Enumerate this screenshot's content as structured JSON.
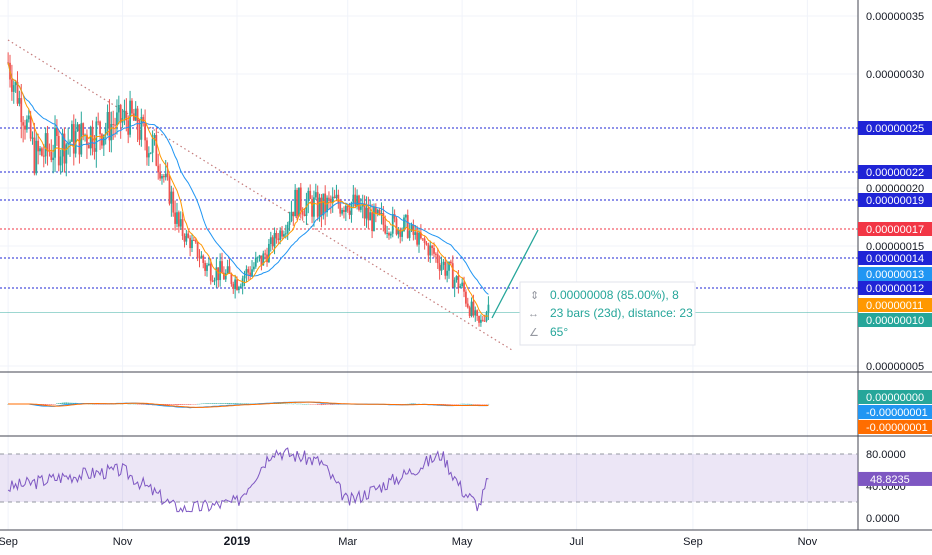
{
  "price_panel": {
    "y_ticks": [
      {
        "value": 3.5e-07,
        "label": "0.00000035"
      },
      {
        "value": 3e-07,
        "label": "0.00000030"
      },
      {
        "value": 2e-07,
        "label": "0.00000020"
      },
      {
        "value": 1.5e-07,
        "label": "0.00000015"
      },
      {
        "value": 5e-08,
        "label": "0.00000005"
      }
    ],
    "level_lines": [
      {
        "value": 2.5e-07,
        "label": "0.00000025",
        "color": "#1f24d6",
        "style": "dotted",
        "badge_color": "#1f24d6"
      },
      {
        "value": 2.2e-07,
        "label": "0.00000022",
        "color": "#1f24d6",
        "style": "dotted",
        "badge_color": "#1f24d6"
      },
      {
        "value": 1.9e-07,
        "label": "0.00000019",
        "color": "#1f24d6",
        "style": "dotted",
        "badge_color": "#1f24d6"
      },
      {
        "value": 1.7e-07,
        "label": "0.00000017",
        "color": "#f23645",
        "style": "dotted",
        "badge_color": "#f23645"
      },
      {
        "value": 1.4e-07,
        "label": "0.00000014",
        "color": "#1f24d6",
        "style": "dotted",
        "badge_color": "#1f24d6"
      },
      {
        "value": 1.2e-07,
        "label": "0.00000012",
        "color": "#1f24d6",
        "style": "dotted",
        "badge_color": "#1f24d6"
      },
      {
        "value": 1.05e-07,
        "label": "",
        "color": "#26a69a",
        "style": "solid",
        "badge_color": ""
      }
    ],
    "badges": [
      {
        "value": 1.3e-07,
        "label": "0.00000013",
        "color": "#2196f3"
      },
      {
        "value": 1.1e-07,
        "label": "0.00000011",
        "color": "#ff9800"
      },
      {
        "value": 1e-07,
        "label": "0.00000010",
        "color": "#26a69a"
      }
    ],
    "measure_box": {
      "line1": "0.00000008 (85.00%), 8",
      "line2": "23 bars (23d), distance: 23",
      "line3": "65°"
    }
  },
  "macd_panel": {
    "badges": [
      {
        "label": "0.00000000",
        "color": "#26a69a"
      },
      {
        "label": "-0.00000001",
        "color": "#2196f3"
      },
      {
        "label": "-0.00000001",
        "color": "#ff6d00"
      }
    ]
  },
  "rsi_panel": {
    "y_ticks": [
      {
        "value": 80,
        "label": "80.0000"
      },
      {
        "value": 40,
        "label": "40.0000"
      },
      {
        "value": 0,
        "label": "0.0000"
      }
    ],
    "badge": {
      "value": 48.8235,
      "label": "48.8235",
      "color": "#7e57c2"
    },
    "band": [
      20,
      80
    ]
  },
  "x_axis": {
    "labels": [
      "Sep",
      "Nov",
      "2019",
      "Mar",
      "May",
      "Jul",
      "Sep",
      "Nov"
    ],
    "bold": [
      false,
      false,
      true,
      false,
      false,
      false,
      false,
      false
    ]
  },
  "chart_data": [
    {
      "type": "candlestick",
      "panel": "price",
      "series": [
        {
          "name": "",
          "color": "#2196f3",
          "description_values": "slow moving average"
        },
        {
          "name": "",
          "color": "#ff9800",
          "description_values": "fast moving average"
        }
      ],
      "approx_close_path": [
        {
          "date": "2018-09-01",
          "close": 3.1e-07
        },
        {
          "date": "2018-09-15",
          "close": 2.3e-07
        },
        {
          "date": "2018-10-01",
          "close": 2.4e-07
        },
        {
          "date": "2018-10-20",
          "close": 2.5e-07
        },
        {
          "date": "2018-11-05",
          "close": 2.6e-07
        },
        {
          "date": "2018-11-20",
          "close": 2.3e-07
        },
        {
          "date": "2018-12-01",
          "close": 1.7e-07
        },
        {
          "date": "2018-12-15",
          "close": 1.35e-07
        },
        {
          "date": "2019-01-01",
          "close": 1.25e-07
        },
        {
          "date": "2019-01-15",
          "close": 1.4e-07
        },
        {
          "date": "2019-02-01",
          "close": 1.9e-07
        },
        {
          "date": "2019-02-15",
          "close": 1.85e-07
        },
        {
          "date": "2019-03-01",
          "close": 1.9e-07
        },
        {
          "date": "2019-03-15",
          "close": 1.75e-07
        },
        {
          "date": "2019-04-01",
          "close": 1.7e-07
        },
        {
          "date": "2019-04-15",
          "close": 1.45e-07
        },
        {
          "date": "2019-05-01",
          "close": 1.2e-07
        },
        {
          "date": "2019-05-10",
          "close": 9.5e-08
        },
        {
          "date": "2019-05-15",
          "close": 1.1e-07
        }
      ],
      "ylim": [
        3.5e-08,
        3.7e-07
      ],
      "xlim": [
        "2018-08-25",
        "2019-11-20"
      ]
    },
    {
      "type": "histogram",
      "panel": "macd",
      "values_hint": "small oscillating histogram with two signal lines"
    },
    {
      "type": "line",
      "panel": "rsi",
      "ylim": [
        -5,
        95
      ],
      "approx_path": [
        {
          "date": "2018-09-01",
          "value": 38
        },
        {
          "date": "2018-10-01",
          "value": 52
        },
        {
          "date": "2018-11-01",
          "value": 60
        },
        {
          "date": "2018-12-01",
          "value": 10
        },
        {
          "date": "2019-01-01",
          "value": 20
        },
        {
          "date": "2019-01-20",
          "value": 85
        },
        {
          "date": "2019-02-15",
          "value": 70
        },
        {
          "date": "2019-03-01",
          "value": 20
        },
        {
          "date": "2019-04-01",
          "value": 55
        },
        {
          "date": "2019-04-20",
          "value": 80
        },
        {
          "date": "2019-05-01",
          "value": 35
        },
        {
          "date": "2019-05-10",
          "value": 15
        },
        {
          "date": "2019-05-15",
          "value": 48.8235
        }
      ]
    }
  ]
}
